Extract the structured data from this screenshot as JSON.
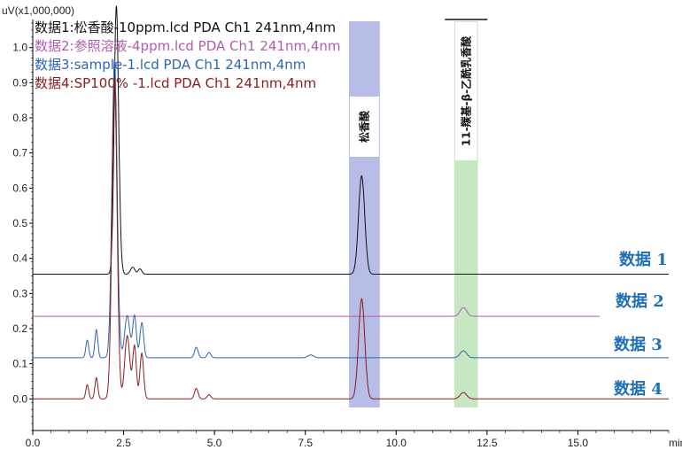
{
  "chart_data": {
    "type": "line",
    "yunit_label": "uV(x1,000,000)",
    "xunit_label": "min",
    "xlim": [
      0,
      17.5
    ],
    "ylim": [
      -0.09,
      1.08
    ],
    "x_ticks": [
      0.0,
      2.5,
      5.0,
      7.5,
      10.0,
      12.5,
      15.0
    ],
    "x_tick_labels": [
      "0.0",
      "2.5",
      "5.0",
      "7.5",
      "10.0",
      "12.5",
      "15.0"
    ],
    "y_ticks": [
      0.0,
      0.1,
      0.2,
      0.3,
      0.4,
      0.5,
      0.6,
      0.7,
      0.8,
      0.9,
      1.0
    ],
    "y_tick_labels": [
      "0.0",
      "0.1",
      "0.2",
      "0.3",
      "0.4",
      "0.5",
      "0.6",
      "0.7",
      "0.8",
      "0.9",
      "1.0"
    ],
    "legend": [
      {
        "text": "数据1:松香酸-10ppm.lcd PDA Ch1 241nm,4nm",
        "color": "#111111"
      },
      {
        "text": "数据2:参照溶液-4ppm.lcd PDA Ch1 241nm,4nm",
        "color": "#b05cae"
      },
      {
        "text": "数据3:sample-1.lcd PDA Ch1 241nm,4nm",
        "color": "#2e66b0"
      },
      {
        "text": "数据4:SP100% -1.lcd PDA Ch1 241nm,4nm",
        "color": "#8b1c1c"
      }
    ],
    "bands": [
      {
        "label": "松香酸",
        "x_start": 8.7,
        "x_end": 9.55,
        "color": "#b7bde6"
      },
      {
        "label": "11-羰基-β-乙酰乳香酸",
        "x_start": 11.6,
        "x_end": 12.25,
        "color": "#c7e6c2"
      }
    ],
    "series": [
      {
        "name": "数据1",
        "color": "#111111",
        "baseline": 0.355,
        "x_end": 17.5,
        "peaks": [
          {
            "x": 2.3,
            "h": 0.76,
            "w": 0.06
          },
          {
            "x": 2.4,
            "h": 0.03,
            "w": 0.05
          },
          {
            "x": 2.75,
            "h": 0.02,
            "w": 0.06
          },
          {
            "x": 2.95,
            "h": 0.015,
            "w": 0.05
          },
          {
            "x": 9.05,
            "h": 0.28,
            "w": 0.085
          }
        ]
      },
      {
        "name": "数据2",
        "color": "#b05cae",
        "baseline": 0.235,
        "x_end": 15.6,
        "peaks": [
          {
            "x": 11.85,
            "h": 0.025,
            "w": 0.09
          }
        ]
      },
      {
        "name": "数据3",
        "color": "#2e66b0",
        "baseline": 0.117,
        "x_end": 17.5,
        "peaks": [
          {
            "x": 1.5,
            "h": 0.05,
            "w": 0.04
          },
          {
            "x": 1.75,
            "h": 0.08,
            "w": 0.04
          },
          {
            "x": 2.25,
            "h": 0.85,
            "w": 0.07
          },
          {
            "x": 2.6,
            "h": 0.12,
            "w": 0.07
          },
          {
            "x": 2.8,
            "h": 0.12,
            "w": 0.05
          },
          {
            "x": 3.0,
            "h": 0.1,
            "w": 0.05
          },
          {
            "x": 4.5,
            "h": 0.03,
            "w": 0.05
          },
          {
            "x": 4.85,
            "h": 0.015,
            "w": 0.05
          },
          {
            "x": 7.65,
            "h": 0.008,
            "w": 0.08
          },
          {
            "x": 11.85,
            "h": 0.02,
            "w": 0.09
          }
        ]
      },
      {
        "name": "数据4",
        "color": "#8b1c1c",
        "baseline": 0.0,
        "x_end": 17.5,
        "peaks": [
          {
            "x": 1.5,
            "h": 0.04,
            "w": 0.04
          },
          {
            "x": 1.75,
            "h": 0.06,
            "w": 0.04
          },
          {
            "x": 2.25,
            "h": 0.9,
            "w": 0.07
          },
          {
            "x": 2.6,
            "h": 0.18,
            "w": 0.07
          },
          {
            "x": 2.8,
            "h": 0.15,
            "w": 0.05
          },
          {
            "x": 3.0,
            "h": 0.13,
            "w": 0.05
          },
          {
            "x": 4.5,
            "h": 0.03,
            "w": 0.05
          },
          {
            "x": 4.85,
            "h": 0.012,
            "w": 0.05
          },
          {
            "x": 9.05,
            "h": 0.285,
            "w": 0.085
          },
          {
            "x": 11.85,
            "h": 0.018,
            "w": 0.09
          }
        ]
      }
    ],
    "series_labels": [
      {
        "text": "数据 1",
        "color": "#1f6fb5"
      },
      {
        "text": "数据 2",
        "color": "#1f6fb5"
      },
      {
        "text": "数据 3",
        "color": "#1f6fb5"
      },
      {
        "text": "数据 4",
        "color": "#1f6fb5"
      }
    ]
  }
}
